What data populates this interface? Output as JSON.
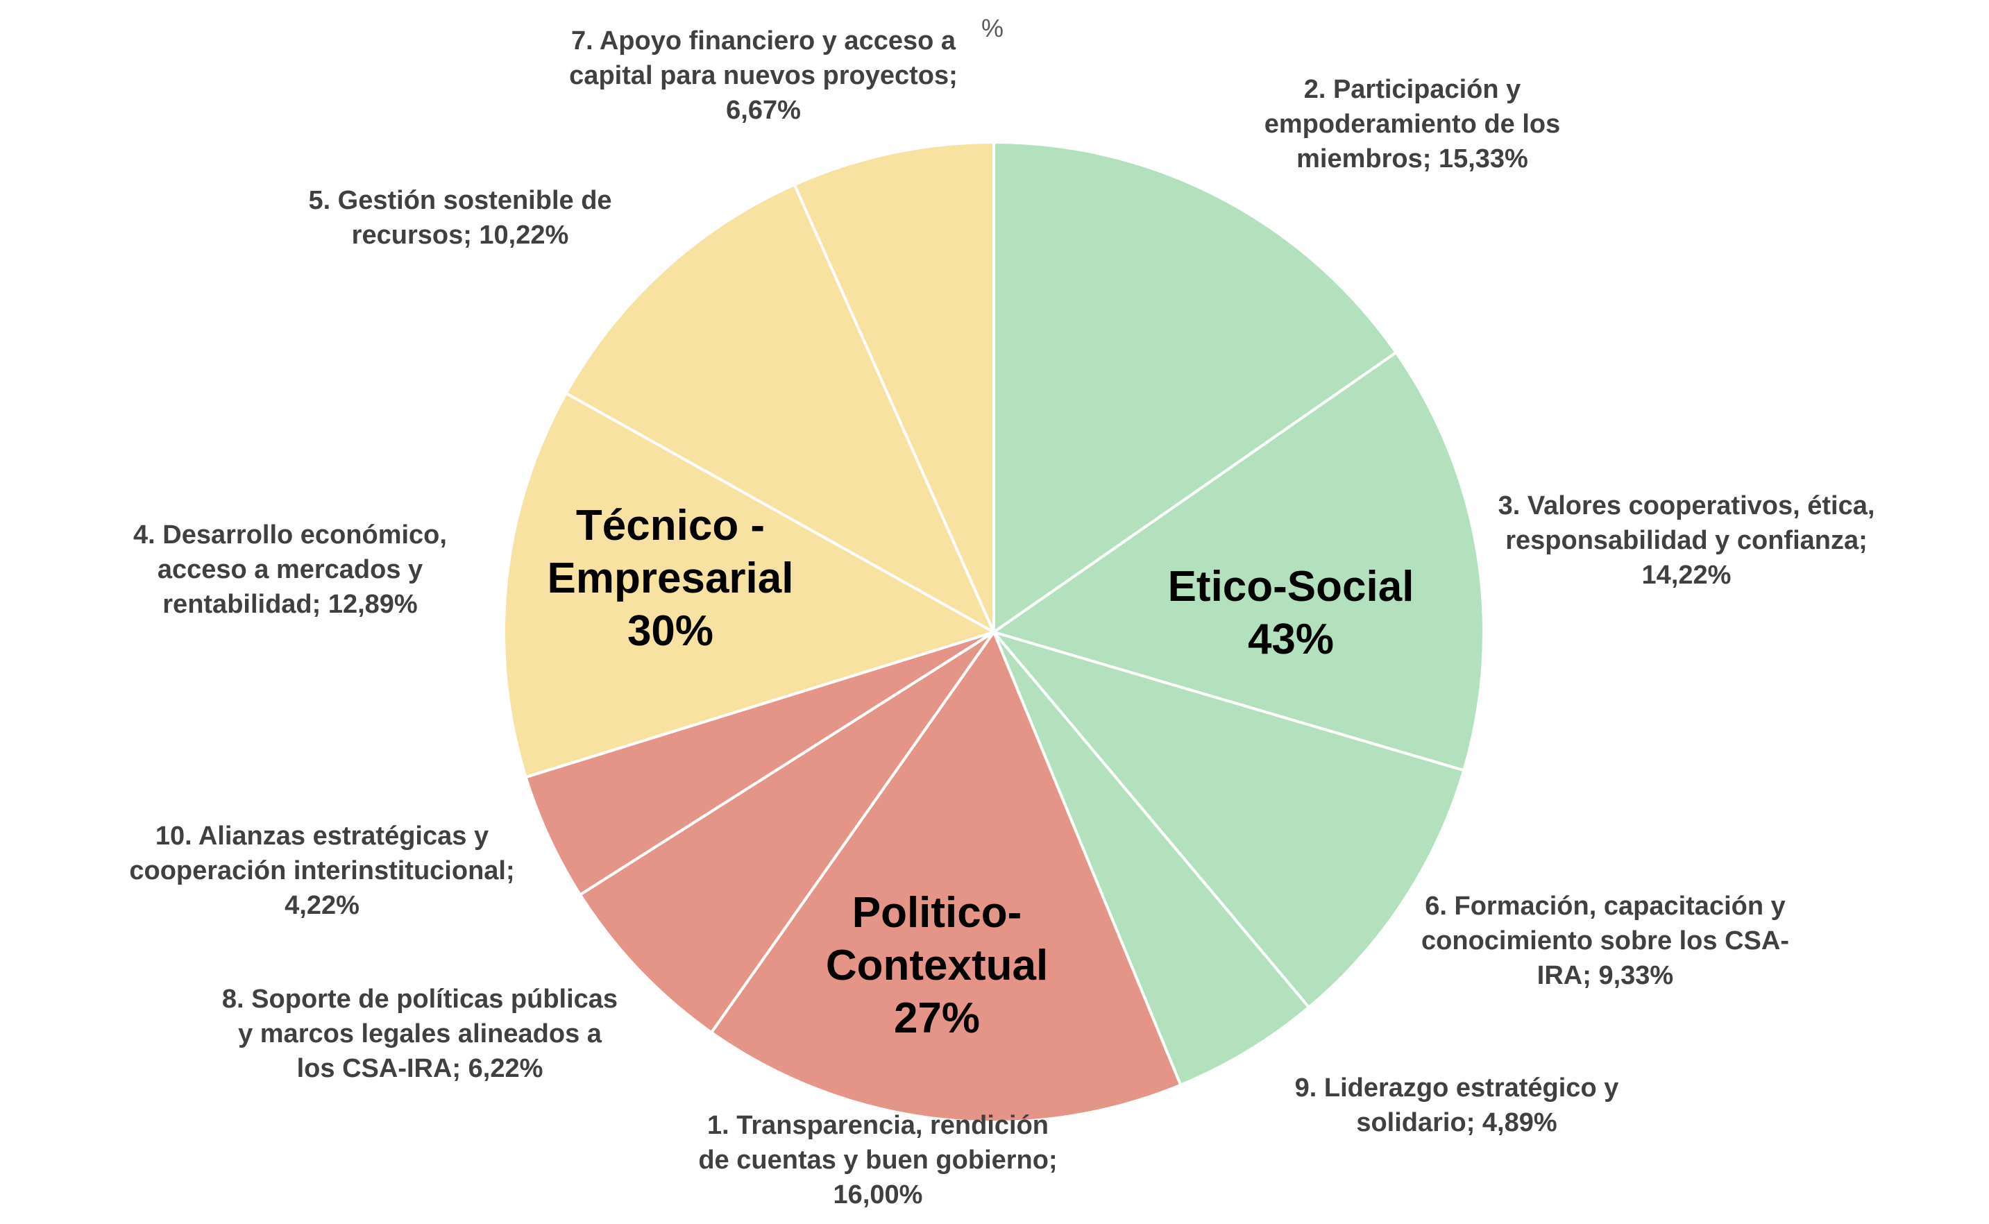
{
  "chart_data": {
    "type": "pie",
    "annotation": "%",
    "values": [
      15.33,
      14.22,
      9.33,
      4.89,
      16.0,
      6.22,
      4.22,
      12.89,
      10.22,
      6.67
    ],
    "value_labels": [
      "2. Participación y empoderamiento de los miembros; 15,33%",
      "3. Valores cooperativos, ética, responsabilidad y confianza; 14,22%",
      "6. Formación, capacitación y conocimiento sobre los CSA-IRA; 9,33%",
      "9. Liderazgo estratégico y solidario; 4,89%",
      "1. Transparencia, rendición de cuentas y buen gobierno; 16,00%",
      "8. Soporte de políticas públicas y marcos legales alineados a los CSA-IRA; 6,22%",
      "10. Alianzas estratégicas y cooperación interinstitucional; 4,22%",
      "4. Desarrollo económico, acceso a mercados y rentabilidad; 12,89%",
      "5. Gestión sostenible de recursos; 10,22%",
      "7. Apoyo financiero y acceso a capital para nuevos proyectos; 6,67%"
    ],
    "colors": [
      "#b3e1bd",
      "#b3e1bd",
      "#b3e1bd",
      "#b3e1bd",
      "#e59488",
      "#e59488",
      "#e59488",
      "#f8e2a2",
      "#f8e2a2",
      "#f8e2a2"
    ],
    "groups": [
      {
        "label": "Etico-Social",
        "value": 43,
        "value_label": "43%"
      },
      {
        "label": "Politico-Contextual",
        "value": 27,
        "value_label": "27%"
      },
      {
        "label": "Técnico - Empresarial",
        "value": 30,
        "value_label": "30%"
      }
    ]
  }
}
